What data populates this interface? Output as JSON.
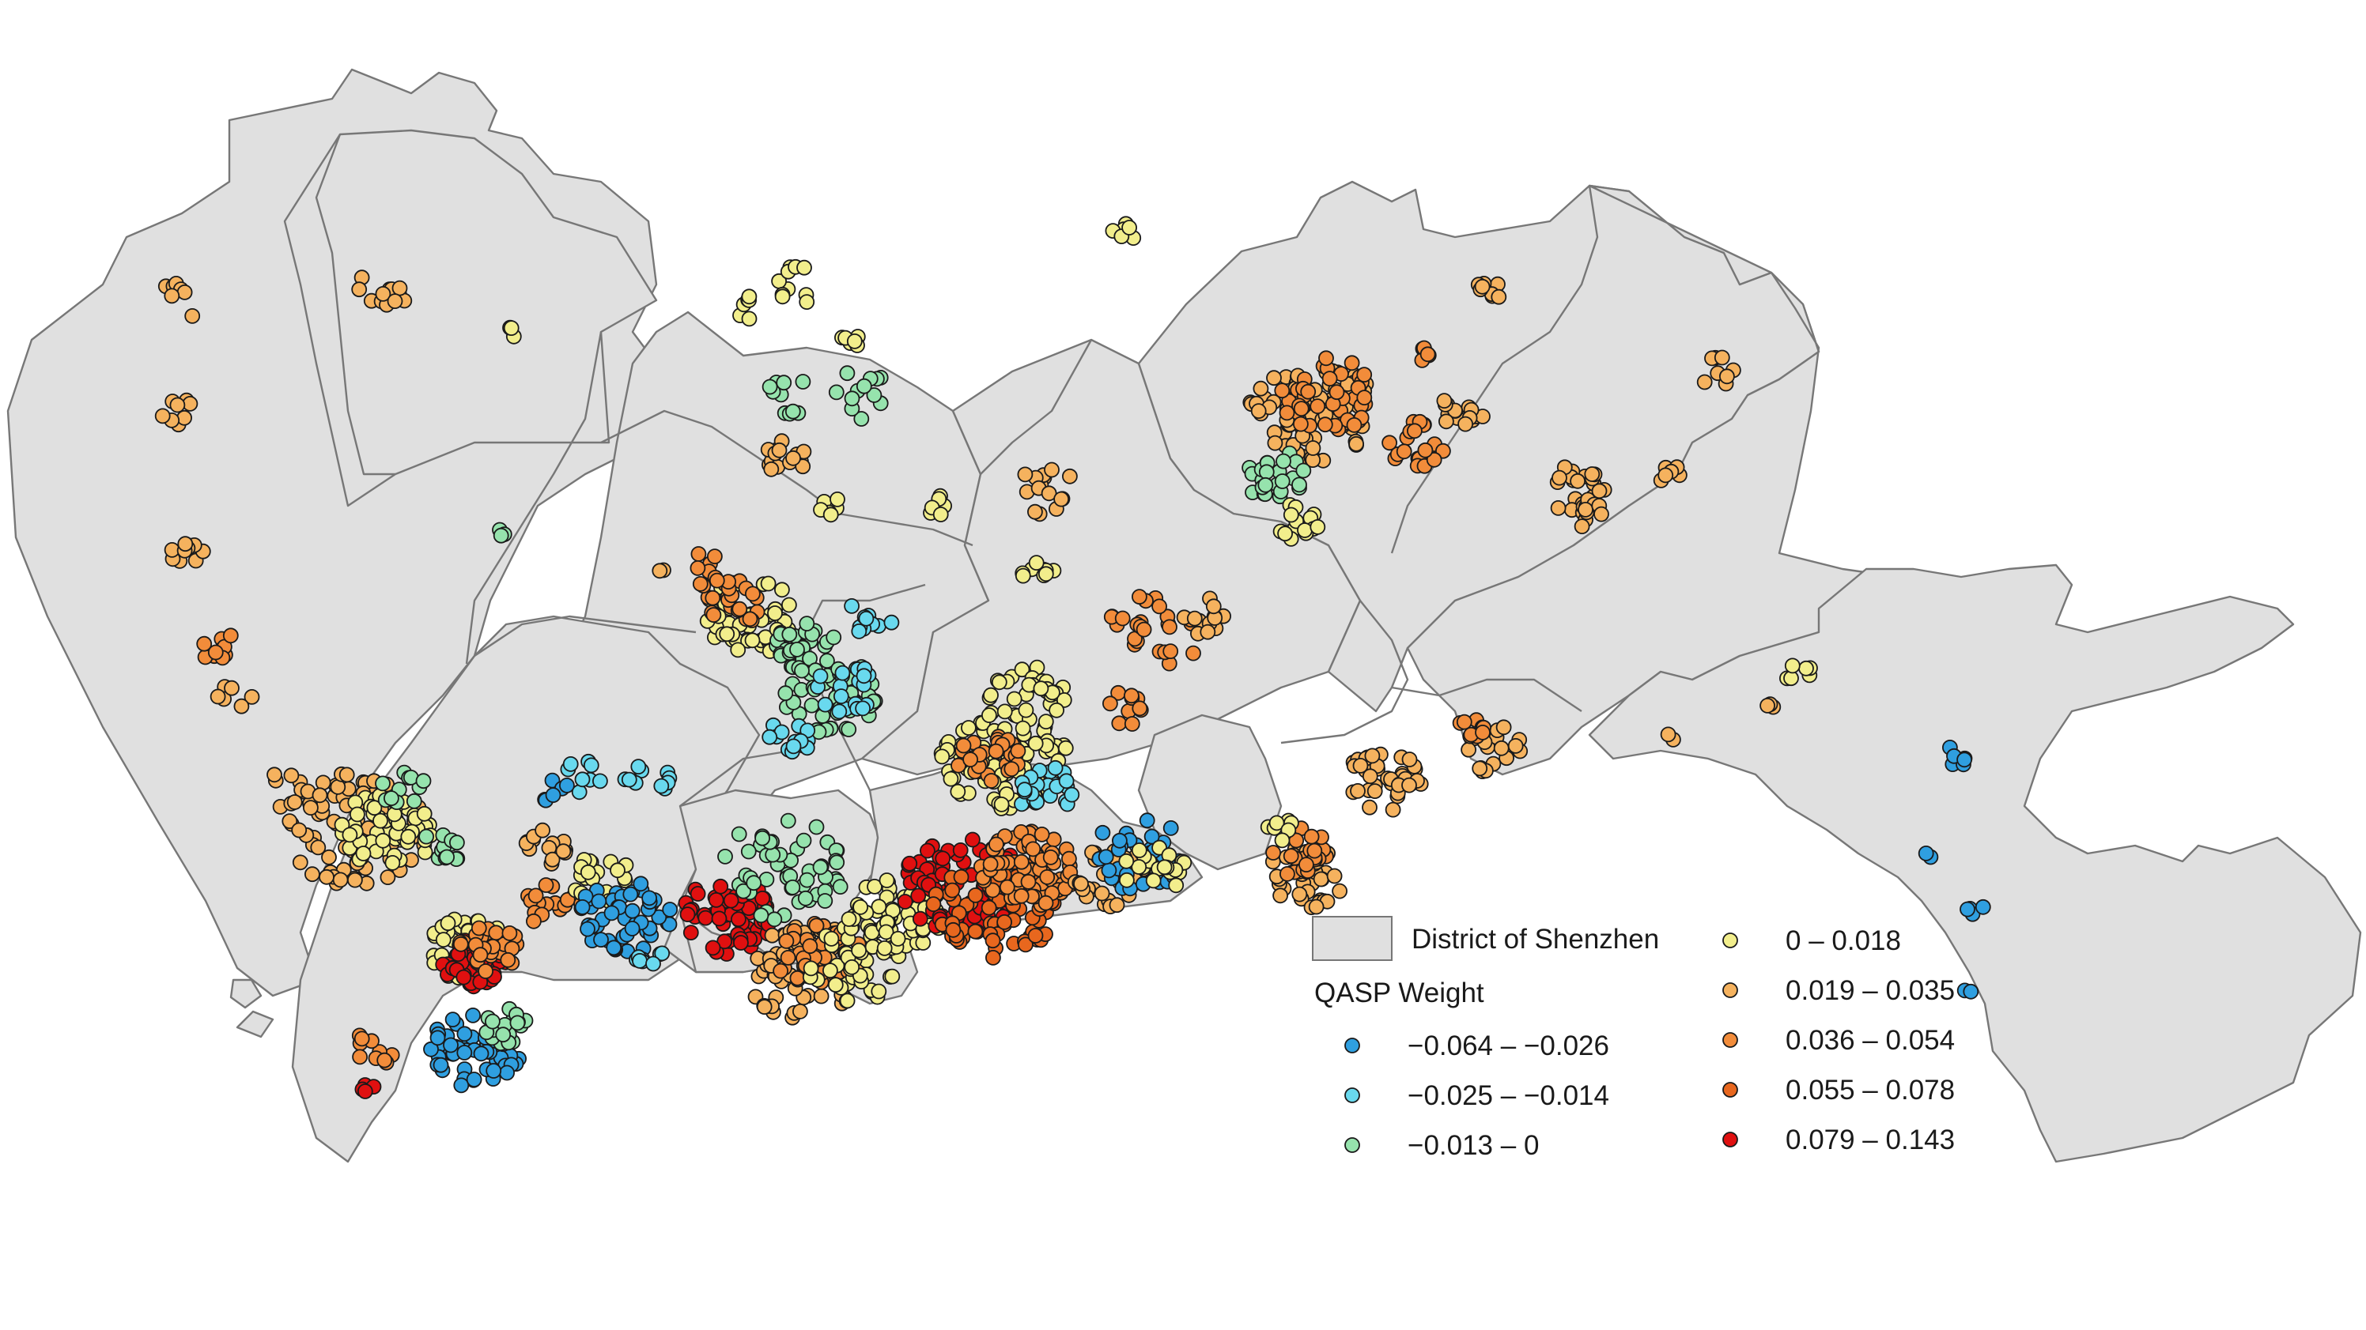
{
  "legend": {
    "district_label": "District of Shenzhen",
    "title": "QASP Weight",
    "classes": [
      {
        "label": "−0.064 – −0.026",
        "color": "#2f9fe0"
      },
      {
        "label": "−0.025 – −0.014",
        "color": "#69d9ee"
      },
      {
        "label": "−0.013 – 0",
        "color": "#96e3ad"
      },
      {
        "label": "0 – 0.018",
        "color": "#f2ee8c"
      },
      {
        "label": "0.019 – 0.035",
        "color": "#f5b25e"
      },
      {
        "label": "0.036 – 0.054",
        "color": "#f28c3a"
      },
      {
        "label": "0.055 – 0.078",
        "color": "#e8671e"
      },
      {
        "label": "0.079 – 0.143",
        "color": "#e01010"
      }
    ]
  }
}
